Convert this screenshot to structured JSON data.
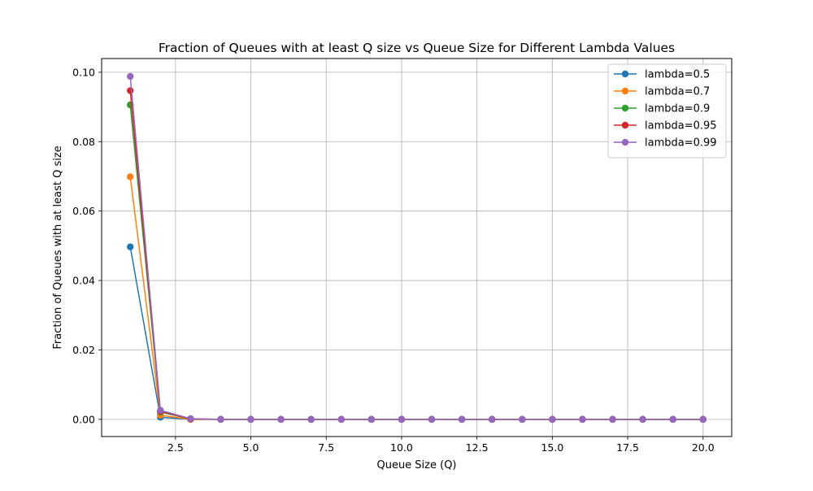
{
  "chart_data": {
    "type": "line",
    "title": "Fraction of Queues with at least Q size vs Queue Size for Different Lambda Values",
    "xlabel": "Queue Size (Q)",
    "ylabel": "Fraction of Queues with at least Q size",
    "xlim": [
      0.05,
      20.95
    ],
    "ylim": [
      -0.00495,
      0.10395
    ],
    "grid": true,
    "legend_position": "top-right",
    "x_ticks": [
      {
        "value": 2.5,
        "label": "2.5"
      },
      {
        "value": 5.0,
        "label": "5.0"
      },
      {
        "value": 7.5,
        "label": "7.5"
      },
      {
        "value": 10.0,
        "label": "10.0"
      },
      {
        "value": 12.5,
        "label": "12.5"
      },
      {
        "value": 15.0,
        "label": "15.0"
      },
      {
        "value": 17.5,
        "label": "17.5"
      },
      {
        "value": 20.0,
        "label": "20.0"
      }
    ],
    "y_ticks": [
      {
        "value": 0.0,
        "label": "0.00"
      },
      {
        "value": 0.02,
        "label": "0.02"
      },
      {
        "value": 0.04,
        "label": "0.04"
      },
      {
        "value": 0.06,
        "label": "0.06"
      },
      {
        "value": 0.08,
        "label": "0.08"
      },
      {
        "value": 0.1,
        "label": "0.10"
      }
    ],
    "x": [
      1,
      2,
      3,
      4,
      5,
      6,
      7,
      8,
      9,
      10,
      11,
      12,
      13,
      14,
      15,
      16,
      17,
      18,
      19,
      20
    ],
    "series": [
      {
        "name": "lambda=0.5",
        "color": "#1f77b4",
        "values": [
          0.0497,
          0.0006,
          0.0,
          0.0,
          0.0,
          0.0,
          0.0,
          0.0,
          0.0,
          0.0,
          0.0,
          0.0,
          0.0,
          0.0,
          0.0,
          0.0,
          0.0,
          0.0,
          0.0,
          0.0
        ]
      },
      {
        "name": "lambda=0.7",
        "color": "#ff7f0e",
        "values": [
          0.0699,
          0.0012,
          0.0,
          0.0,
          0.0,
          0.0,
          0.0,
          0.0,
          0.0,
          0.0,
          0.0,
          0.0,
          0.0,
          0.0,
          0.0,
          0.0,
          0.0,
          0.0,
          0.0,
          0.0
        ]
      },
      {
        "name": "lambda=0.9",
        "color": "#2ca02c",
        "values": [
          0.0906,
          0.0021,
          0.0001,
          0.0,
          0.0,
          0.0,
          0.0,
          0.0,
          0.0,
          0.0,
          0.0,
          0.0,
          0.0,
          0.0,
          0.0,
          0.0,
          0.0,
          0.0,
          0.0,
          0.0
        ]
      },
      {
        "name": "lambda=0.95",
        "color": "#d62728",
        "values": [
          0.0947,
          0.0023,
          0.0001,
          0.0,
          0.0,
          0.0,
          0.0,
          0.0,
          0.0,
          0.0,
          0.0,
          0.0,
          0.0,
          0.0,
          0.0,
          0.0,
          0.0,
          0.0,
          0.0,
          0.0
        ]
      },
      {
        "name": "lambda=0.99",
        "color": "#9467bd",
        "values": [
          0.0988,
          0.0026,
          0.0002,
          0.0,
          0.0,
          0.0,
          0.0,
          0.0,
          0.0,
          0.0,
          0.0,
          0.0,
          0.0,
          0.0,
          0.0,
          0.0,
          0.0,
          0.0,
          0.0,
          0.0
        ]
      }
    ]
  }
}
